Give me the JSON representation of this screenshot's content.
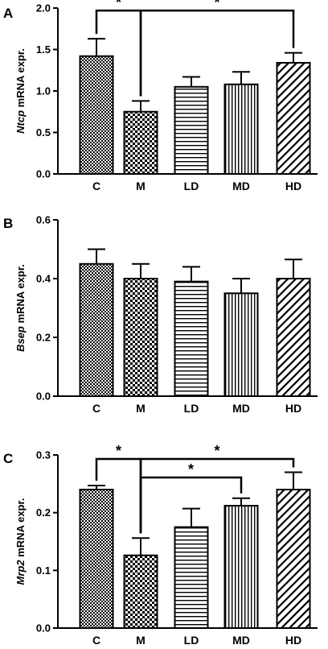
{
  "chart_data": [
    {
      "type": "bar",
      "panel_label": "A",
      "ylabel_gene": "Ntcp",
      "ylabel_rest": " mRNA expr.",
      "categories": [
        "C",
        "M",
        "LD",
        "MD",
        "HD"
      ],
      "values": [
        1.42,
        0.75,
        1.05,
        1.08,
        1.34
      ],
      "errors": [
        0.21,
        0.13,
        0.12,
        0.15,
        0.12
      ],
      "patterns": [
        "dots-dense",
        "checker",
        "hstripes",
        "vstripes",
        "diag"
      ],
      "ylim": [
        0,
        2.0
      ],
      "ticks": [
        "0.0",
        "0.5",
        "1.0",
        "1.5",
        "2.0"
      ],
      "tick_values": [
        0,
        0.5,
        1.0,
        1.5,
        2.0
      ],
      "significance": [
        {
          "from": 0,
          "to": 1,
          "level": 1.97,
          "label": "*"
        },
        {
          "from": 1,
          "to": 4,
          "level": 1.97,
          "label": "*"
        }
      ]
    },
    {
      "type": "bar",
      "panel_label": "B",
      "ylabel_gene": "Bsep",
      "ylabel_rest": " mRNA expr.",
      "categories": [
        "C",
        "M",
        "LD",
        "MD",
        "HD"
      ],
      "values": [
        0.45,
        0.4,
        0.39,
        0.35,
        0.4
      ],
      "errors": [
        0.05,
        0.05,
        0.05,
        0.05,
        0.065
      ],
      "patterns": [
        "dots-dense",
        "checker",
        "hstripes",
        "vstripes",
        "diag"
      ],
      "ylim": [
        0,
        0.6
      ],
      "ticks": [
        "0.0",
        "0.2",
        "0.4",
        "0.6"
      ],
      "tick_values": [
        0,
        0.2,
        0.4,
        0.6
      ],
      "significance": []
    },
    {
      "type": "bar",
      "panel_label": "C",
      "ylabel_gene": "Mrp2",
      "ylabel_rest": " mRNA expr.",
      "categories": [
        "C",
        "M",
        "LD",
        "MD",
        "HD"
      ],
      "values": [
        0.24,
        0.126,
        0.175,
        0.212,
        0.24
      ],
      "errors": [
        0.007,
        0.03,
        0.032,
        0.013,
        0.03
      ],
      "patterns": [
        "dots-dense",
        "checker",
        "hstripes",
        "vstripes",
        "diag"
      ],
      "ylim": [
        0,
        0.3
      ],
      "ticks": [
        "0.0",
        "0.1",
        "0.2",
        "0.3"
      ],
      "tick_values": [
        0,
        0.1,
        0.2,
        0.3
      ],
      "significance": [
        {
          "from": 0,
          "to": 1,
          "level": 0.293,
          "label": "*"
        },
        {
          "from": 1,
          "to": 4,
          "level": 0.293,
          "label": "*"
        },
        {
          "from": 1,
          "to": 3,
          "level": 0.261,
          "label": "*"
        }
      ]
    }
  ]
}
